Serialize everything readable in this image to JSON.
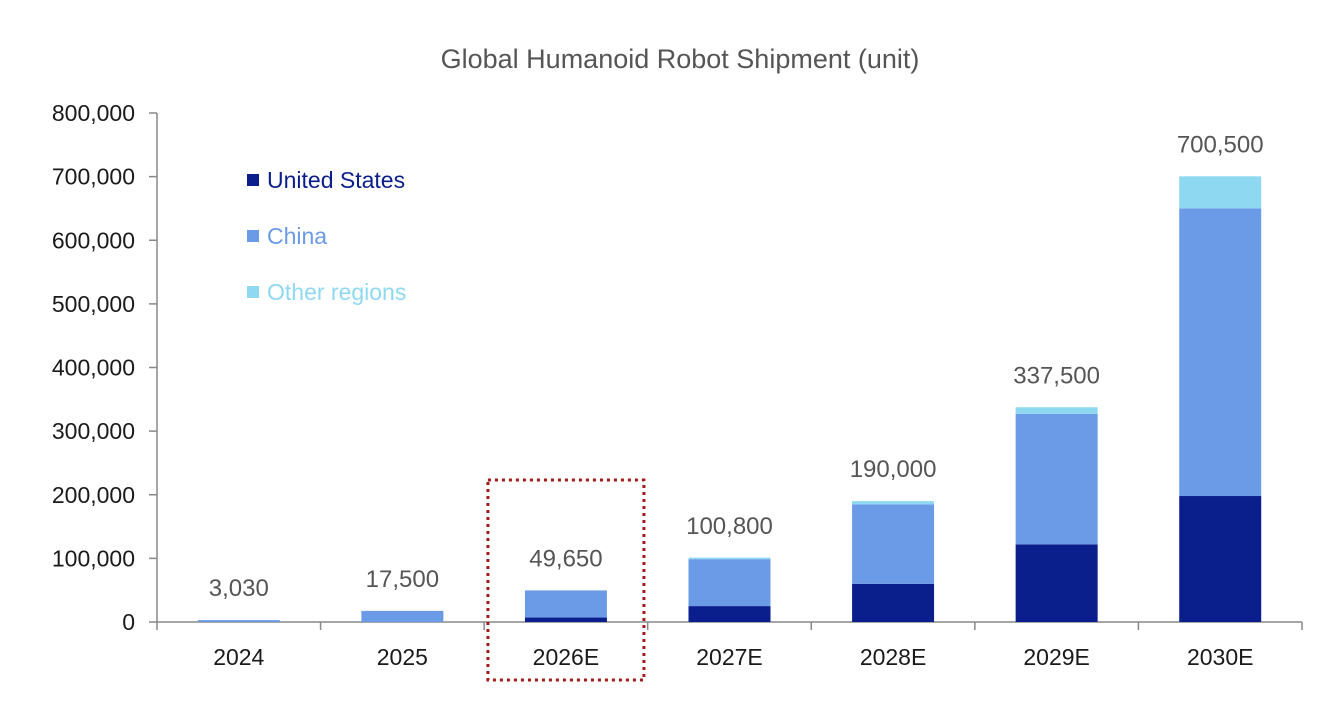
{
  "chart_data": {
    "type": "bar",
    "stacked": true,
    "title": "Global Humanoid Robot Shipment (unit)",
    "xlabel": "",
    "ylabel": "",
    "ylim": [
      0,
      800000
    ],
    "yticks": [
      0,
      100000,
      200000,
      300000,
      400000,
      500000,
      600000,
      700000,
      800000
    ],
    "ytick_labels": [
      "0",
      "100,000",
      "200,000",
      "300,000",
      "400,000",
      "500,000",
      "600,000",
      "700,000",
      "800,000"
    ],
    "grid": false,
    "legend_position": "top-left",
    "categories": [
      "2024",
      "2025",
      "2026E",
      "2027E",
      "2028E",
      "2029E",
      "2030E"
    ],
    "series": [
      {
        "name": "United States",
        "color": "#0a1e8c",
        "values": [
          0,
          0,
          7000,
          25000,
          60000,
          122000,
          198000
        ]
      },
      {
        "name": "China",
        "color": "#6b9be6",
        "values": [
          3030,
          17500,
          42650,
          73800,
          125000,
          205000,
          452000
        ]
      },
      {
        "name": "Other regions",
        "color": "#8fd8f2",
        "values": [
          0,
          0,
          0,
          2000,
          5000,
          10500,
          50500
        ]
      }
    ],
    "totals": [
      3030,
      17500,
      49650,
      100800,
      190000,
      337500,
      700500
    ],
    "total_labels": [
      "3,030",
      "17,500",
      "49,650",
      "100,800",
      "190,000",
      "337,500",
      "700,500"
    ],
    "highlighted_category": "2026E",
    "highlight_color": "#a31a1a"
  }
}
